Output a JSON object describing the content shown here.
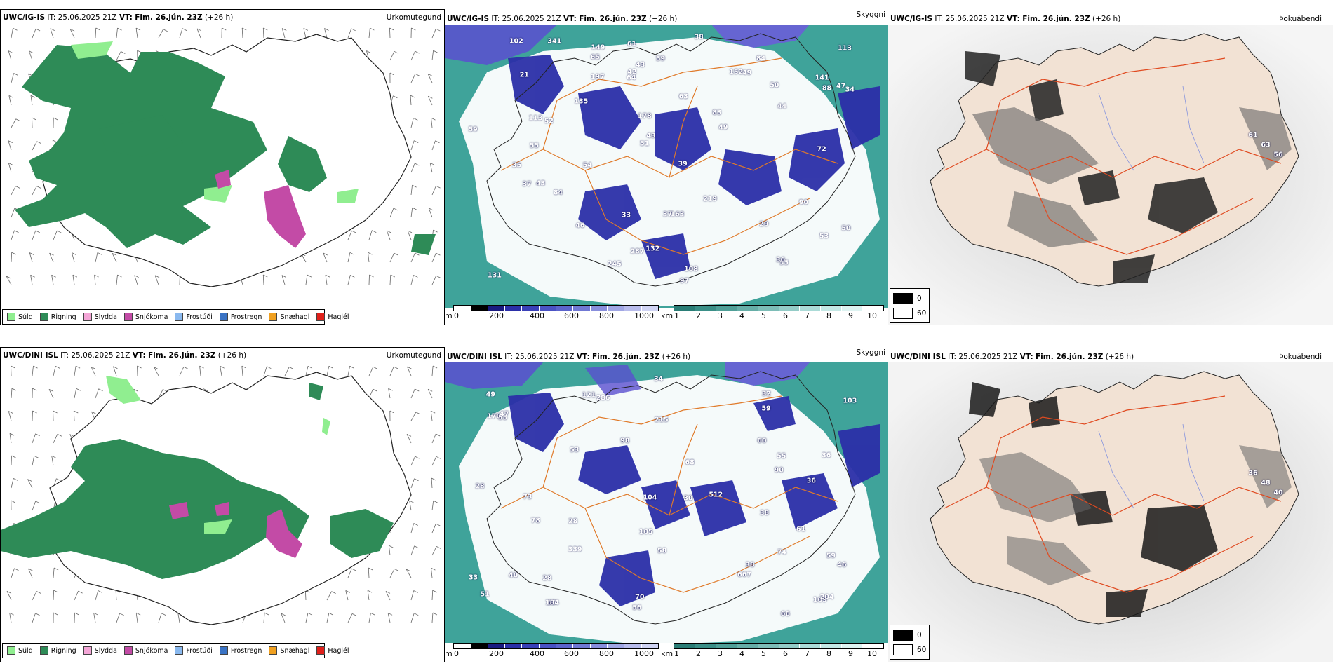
{
  "colors": {
    "rain": "#2e8b57",
    "drizzle": "#90ee90",
    "snow": "#c34ba6",
    "sleet": "#f4a6d7",
    "freezing_drizzle": "#8ab9ef",
    "freezing_rain": "#3a73c4",
    "graupel": "#f0a020",
    "hail": "#e0201a",
    "roads": "#e07a2a",
    "sea_teal": "#3fa39a",
    "cloud_blue": "#2b2fa8",
    "fog_dark": "#111111"
  },
  "rows": [
    {
      "model_label": "UWC/IG-IS",
      "it_label": "IT:",
      "it_value": "25.06.2025 21Z",
      "vt_label": "VT:",
      "vt_value": "Fim. 26.jún. 23Z",
      "lead": "(+26 h)",
      "titles": {
        "precip": "Úrkomutegund",
        "visibility": "Skyggni",
        "fog": "Þokuábendi"
      },
      "cloud_numbers": [
        "141",
        "131",
        "97",
        "245",
        "178",
        "219",
        "113",
        "197",
        "163",
        "47",
        "55",
        "43",
        "34",
        "44",
        "43",
        "53",
        "287",
        "83",
        "65",
        "84",
        "63",
        "49",
        "61",
        "21",
        "149",
        "59",
        "59",
        "55",
        "42",
        "50",
        "49",
        "135",
        "64",
        "52",
        "108",
        "113",
        "72",
        "43",
        "29",
        "38",
        "88",
        "51",
        "341",
        "152",
        "50",
        "46",
        "37",
        "37",
        "102",
        "54",
        "35",
        "36",
        "39",
        "33",
        "90",
        "132",
        "84"
      ],
      "fog_numbers": [
        "61",
        "63",
        "56"
      ]
    },
    {
      "model_label": "UWC/DINI ISL",
      "it_label": "IT:",
      "it_value": "25.06.2025 21Z",
      "vt_label": "VT:",
      "vt_value": "Fim. 26.jún. 23Z",
      "lead": "(+26 h)",
      "titles": {
        "precip": "Úrkomutegund",
        "visibility": "Skyggni",
        "fog": "Þokuábendi"
      },
      "cloud_numbers": [
        "170",
        "34",
        "28",
        "36",
        "55",
        "78",
        "215",
        "36",
        "286",
        "68",
        "667",
        "59",
        "60",
        "512",
        "49",
        "51",
        "58",
        "105",
        "104",
        "109",
        "98",
        "103",
        "53",
        "60",
        "46",
        "40",
        "33",
        "38",
        "121",
        "184",
        "204",
        "339",
        "56",
        "55",
        "32",
        "28",
        "30",
        "74",
        "73",
        "90",
        "66",
        "28",
        "70",
        "59",
        "38",
        "61",
        "47"
      ],
      "fog_numbers": [
        "36",
        "48",
        "40"
      ]
    }
  ],
  "precip_legend": [
    "Súld",
    "Rigning",
    "Slydda",
    "Snjókoma",
    "Frostúði",
    "Frostregn",
    "Snæhagl",
    "Haglél"
  ],
  "elevation_scale": {
    "unit": "m",
    "ticks": [
      "0",
      "200",
      "400",
      "600",
      "800",
      "1000"
    ]
  },
  "visibility_scale": {
    "unit": "km",
    "ticks": [
      "1",
      "2",
      "3",
      "4",
      "5",
      "6",
      "7",
      "8",
      "9",
      "10"
    ]
  },
  "fog_legend": {
    "low": "0",
    "high": "60"
  }
}
